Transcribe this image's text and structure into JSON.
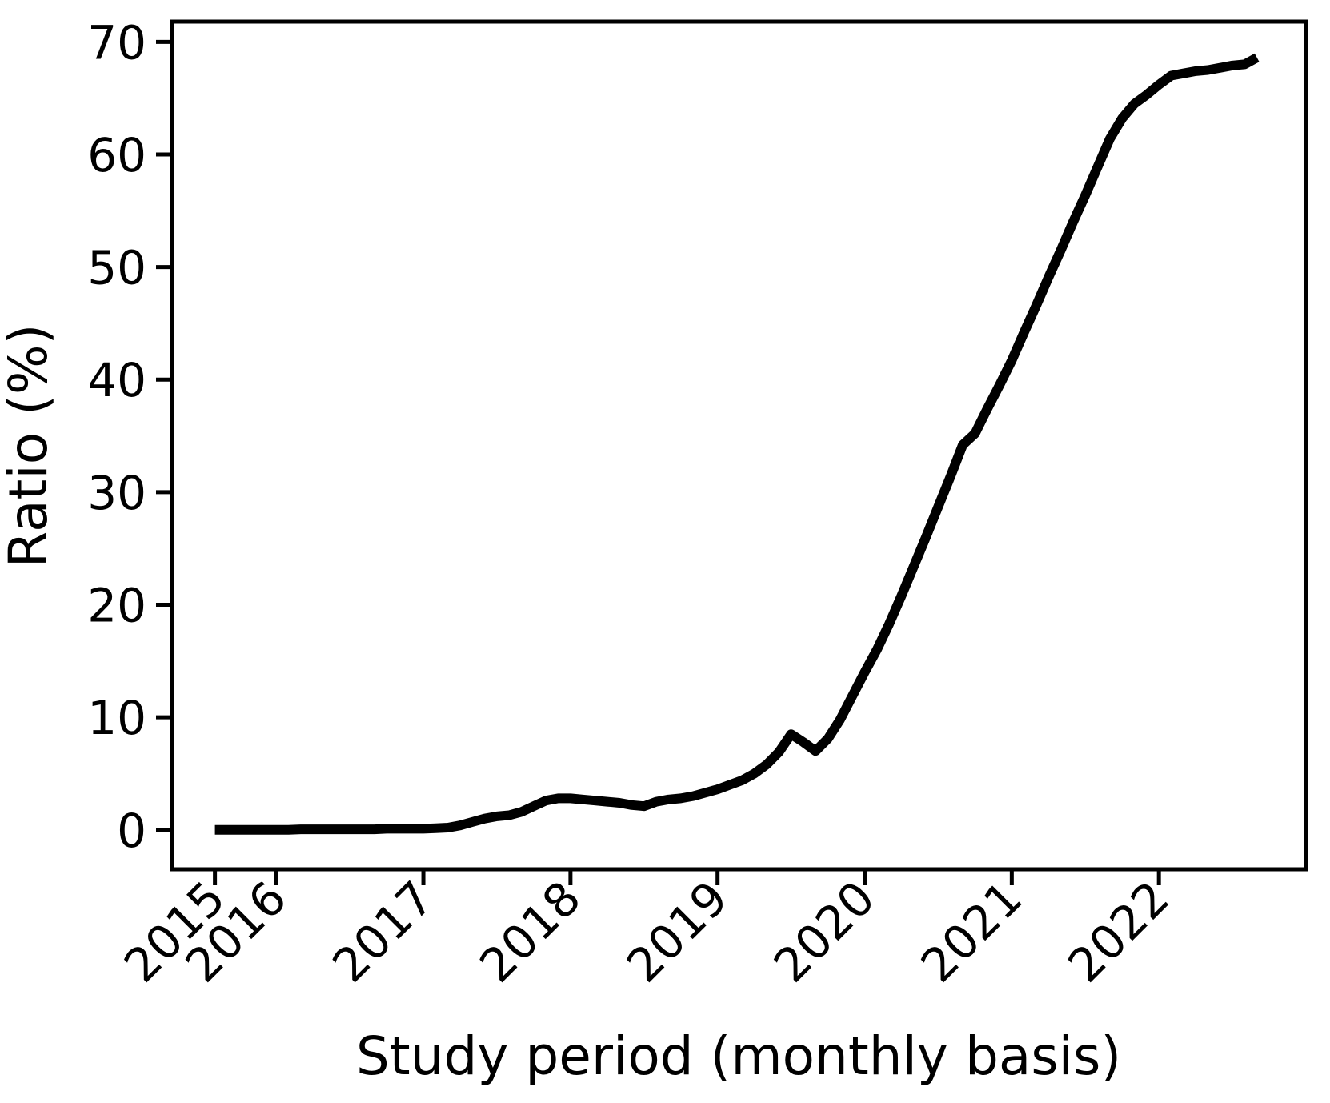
{
  "figure": {
    "background": "#ffffff",
    "foreground": "#000000"
  },
  "chart_data": {
    "type": "line",
    "title": "",
    "xlabel": "Study period (monthly basis)",
    "ylabel": "Ratio (%)",
    "grid": false,
    "legend_position": "none",
    "line_color": "#000000",
    "line_width": 12,
    "ylim": [
      -3.5,
      71.8
    ],
    "xlim_index": [
      -3.5,
      89
    ],
    "y_ticks": [
      0,
      10,
      20,
      30,
      40,
      50,
      60,
      70
    ],
    "x_ticks": [
      {
        "label": "2015",
        "index": 0
      },
      {
        "label": "2016",
        "index": 5
      },
      {
        "label": "2017",
        "index": 17
      },
      {
        "label": "2018",
        "index": 29
      },
      {
        "label": "2019",
        "index": 41
      },
      {
        "label": "2020",
        "index": 53
      },
      {
        "label": "2021",
        "index": 65
      },
      {
        "label": "2022",
        "index": 77
      }
    ],
    "x": [
      "2015-08",
      "2015-09",
      "2015-10",
      "2015-11",
      "2015-12",
      "2016-01",
      "2016-02",
      "2016-03",
      "2016-04",
      "2016-05",
      "2016-06",
      "2016-07",
      "2016-08",
      "2016-09",
      "2016-10",
      "2016-11",
      "2016-12",
      "2017-01",
      "2017-02",
      "2017-03",
      "2017-04",
      "2017-05",
      "2017-06",
      "2017-07",
      "2017-08",
      "2017-09",
      "2017-10",
      "2017-11",
      "2017-12",
      "2018-01",
      "2018-02",
      "2018-03",
      "2018-04",
      "2018-05",
      "2018-06",
      "2018-07",
      "2018-08",
      "2018-09",
      "2018-10",
      "2018-11",
      "2018-12",
      "2019-01",
      "2019-02",
      "2019-03",
      "2019-04",
      "2019-05",
      "2019-06",
      "2019-07",
      "2019-08",
      "2019-09",
      "2019-10",
      "2019-11",
      "2019-12",
      "2020-01",
      "2020-02",
      "2020-03",
      "2020-04",
      "2020-05",
      "2020-06",
      "2020-07",
      "2020-08",
      "2020-09",
      "2020-10",
      "2020-11",
      "2020-12",
      "2021-01",
      "2021-02",
      "2021-03",
      "2021-04",
      "2021-05",
      "2021-06",
      "2021-07",
      "2021-08",
      "2021-09",
      "2021-10",
      "2021-11",
      "2021-12",
      "2022-01",
      "2022-02",
      "2022-03",
      "2022-04",
      "2022-05",
      "2022-06",
      "2022-07",
      "2022-08",
      "2022-09"
    ],
    "values": [
      0.0,
      0.0,
      0.0,
      0.0,
      0.0,
      0.0,
      0.0,
      0.05,
      0.05,
      0.05,
      0.05,
      0.05,
      0.05,
      0.05,
      0.1,
      0.1,
      0.1,
      0.1,
      0.15,
      0.2,
      0.4,
      0.7,
      1.0,
      1.2,
      1.3,
      1.6,
      2.1,
      2.6,
      2.8,
      2.8,
      2.7,
      2.6,
      2.5,
      2.4,
      2.2,
      2.1,
      2.5,
      2.7,
      2.8,
      3.0,
      3.3,
      3.6,
      4.0,
      4.4,
      5.0,
      5.8,
      6.9,
      8.5,
      7.8,
      7.0,
      8.1,
      9.8,
      11.9,
      14.0,
      16.0,
      18.3,
      20.8,
      23.4,
      26.0,
      28.7,
      31.4,
      34.2,
      35.2,
      37.4,
      39.5,
      41.7,
      44.2,
      46.6,
      49.1,
      51.5,
      54.0,
      56.4,
      58.9,
      61.4,
      63.2,
      64.5,
      65.3,
      66.2,
      67.0,
      67.2,
      67.4,
      67.5,
      67.7,
      67.9,
      68.0,
      68.6
    ]
  }
}
